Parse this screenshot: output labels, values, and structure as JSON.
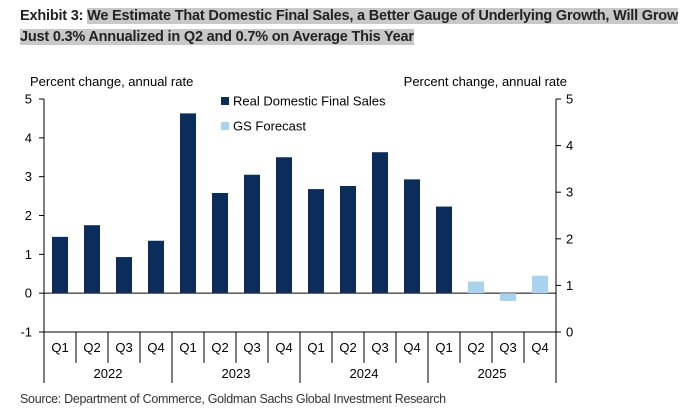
{
  "header": {
    "exhibit_label": "Exhibit 3:",
    "title": "We Estimate That Domestic Final Sales, a Better Gauge of Underlying Growth, Will Grow Just 0.3% Annualized in Q2 and 0.7% on Average This Year"
  },
  "footer": {
    "source": "Source: Department of Commerce, Goldman Sachs Global Investment Research"
  },
  "chart_data": {
    "type": "bar",
    "left_axis_label": "Percent change, annual rate",
    "right_axis_label": "Percent change, annual rate",
    "left_ylim": [
      -1,
      5
    ],
    "left_ticks": [
      -1,
      0,
      1,
      2,
      3,
      4,
      5
    ],
    "right_ylim": [
      0,
      5
    ],
    "right_ticks": [
      0,
      1,
      2,
      3,
      4,
      5
    ],
    "legend_position": "top-center",
    "categories": [
      "Q1",
      "Q2",
      "Q3",
      "Q4",
      "Q1",
      "Q2",
      "Q3",
      "Q4",
      "Q1",
      "Q2",
      "Q3",
      "Q4",
      "Q1",
      "Q2",
      "Q3",
      "Q4"
    ],
    "years": [
      {
        "label": "2022",
        "count": 4
      },
      {
        "label": "2023",
        "count": 4
      },
      {
        "label": "2024",
        "count": 4
      },
      {
        "label": "2025",
        "count": 4
      }
    ],
    "series": [
      {
        "name": "Real Domestic Final Sales",
        "color": "#0b2d5a",
        "values": [
          1.45,
          1.75,
          0.93,
          1.35,
          4.63,
          2.58,
          3.05,
          3.5,
          2.68,
          2.76,
          3.63,
          2.93,
          2.23,
          null,
          null,
          null
        ]
      },
      {
        "name": "GS Forecast",
        "color": "#a9d2ee",
        "values": [
          null,
          null,
          null,
          null,
          null,
          null,
          null,
          null,
          null,
          null,
          null,
          null,
          null,
          0.3,
          -0.2,
          0.45
        ]
      }
    ]
  }
}
